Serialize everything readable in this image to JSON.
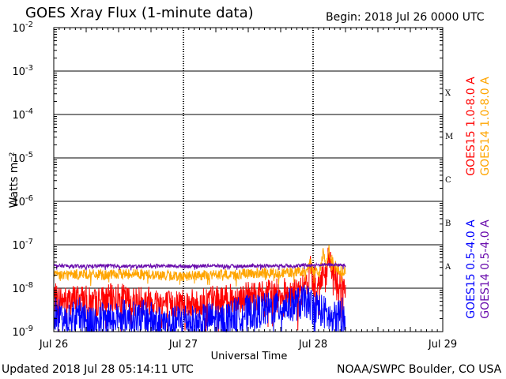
{
  "title": "GOES Xray Flux (1-minute data)",
  "begin": "Begin:  2018 Jul 26 0000 UTC",
  "updated": "Updated 2018 Jul 28 05:14:11 UTC",
  "credit": "NOAA/SWPC Boulder, CO USA",
  "colors": {
    "goes15_long": "#ff0000",
    "goes14_long": "#ffa500",
    "goes15_short": "#0000ff",
    "goes14_short": "#6a0dad"
  },
  "chart_data": {
    "type": "line",
    "title": "GOES Xray Flux (1-minute data)",
    "xlabel": "Universal Time",
    "ylabel": "Watts m⁻²",
    "yscale": "log",
    "ylim": [
      1e-09,
      0.01
    ],
    "xlim": [
      0,
      3
    ],
    "x_ticks": [
      {
        "value": 0,
        "label": "Jul 26"
      },
      {
        "value": 1,
        "label": "Jul 27"
      },
      {
        "value": 2,
        "label": "Jul 28"
      },
      {
        "value": 3,
        "label": "Jul 29"
      }
    ],
    "y_ticks": [
      {
        "value": 1e-09,
        "base": "10",
        "exp": "-9"
      },
      {
        "value": 1e-08,
        "base": "10",
        "exp": "-8"
      },
      {
        "value": 1e-07,
        "base": "10",
        "exp": "-7"
      },
      {
        "value": 1e-06,
        "base": "10",
        "exp": "-6"
      },
      {
        "value": 1e-05,
        "base": "10",
        "exp": "-5"
      },
      {
        "value": 0.0001,
        "base": "10",
        "exp": "-4"
      },
      {
        "value": 0.001,
        "base": "10",
        "exp": "-3"
      },
      {
        "value": 0.01,
        "base": "10",
        "exp": "-2"
      }
    ],
    "flare_classes": [
      {
        "label": "A",
        "value": 3.2e-08
      },
      {
        "label": "B",
        "value": 3.2e-07
      },
      {
        "label": "C",
        "value": 3.2e-06
      },
      {
        "label": "M",
        "value": 3.2e-05
      },
      {
        "label": "X",
        "value": 0.00032
      }
    ],
    "grid": true,
    "series": [
      {
        "name": "GOES15 1.0-8.0 A",
        "color": "#ff0000",
        "points": [
          [
            0,
            6e-09
          ],
          [
            0.1,
            5e-09
          ],
          [
            0.2,
            6e-09
          ],
          [
            0.3,
            4.5e-09
          ],
          [
            0.4,
            5.5e-09
          ],
          [
            0.5,
            6e-09
          ],
          [
            0.6,
            5e-09
          ],
          [
            0.7,
            5.5e-09
          ],
          [
            0.8,
            5e-09
          ],
          [
            0.9,
            4e-09
          ],
          [
            1.0,
            5e-09
          ],
          [
            1.1,
            4e-09
          ],
          [
            1.2,
            5.5e-09
          ],
          [
            1.3,
            5e-09
          ],
          [
            1.4,
            6e-09
          ],
          [
            1.5,
            6.5e-09
          ],
          [
            1.6,
            7e-09
          ],
          [
            1.7,
            7.5e-09
          ],
          [
            1.8,
            8e-09
          ],
          [
            1.9,
            8e-09
          ],
          [
            1.95,
            1.1e-08
          ],
          [
            1.98,
            3e-08
          ],
          [
            2.0,
            1.5e-08
          ],
          [
            2.05,
            1.2e-08
          ],
          [
            2.08,
            2.5e-08
          ],
          [
            2.1,
            1.4e-08
          ],
          [
            2.12,
            6e-08
          ],
          [
            2.15,
            2.2e-08
          ],
          [
            2.2,
            1.5e-08
          ],
          [
            2.25,
            8e-09
          ]
        ]
      },
      {
        "name": "GOES14 1.0-8.0 A",
        "color": "#ffa500",
        "points": [
          [
            0,
            2e-08
          ],
          [
            0.2,
            2.1e-08
          ],
          [
            0.4,
            2e-08
          ],
          [
            0.6,
            2.2e-08
          ],
          [
            0.8,
            2e-08
          ],
          [
            1.0,
            1.9e-08
          ],
          [
            1.2,
            2e-08
          ],
          [
            1.4,
            2.1e-08
          ],
          [
            1.6,
            2.2e-08
          ],
          [
            1.8,
            2.3e-08
          ],
          [
            1.95,
            2.4e-08
          ],
          [
            1.98,
            4e-08
          ],
          [
            2.0,
            2.6e-08
          ],
          [
            2.05,
            2.4e-08
          ],
          [
            2.08,
            7e-08
          ],
          [
            2.1,
            2.8e-08
          ],
          [
            2.12,
            8e-08
          ],
          [
            2.15,
            4e-08
          ],
          [
            2.2,
            2.6e-08
          ],
          [
            2.25,
            2.3e-08
          ]
        ]
      },
      {
        "name": "GOES15 0.5-4.0 A",
        "color": "#0000ff",
        "points": [
          [
            0,
            2.5e-09
          ],
          [
            0.1,
            2e-09
          ],
          [
            0.2,
            2.5e-09
          ],
          [
            0.3,
            1.6e-09
          ],
          [
            0.4,
            2e-09
          ],
          [
            0.5,
            2.5e-09
          ],
          [
            0.6,
            2e-09
          ],
          [
            0.7,
            2.2e-09
          ],
          [
            0.8,
            1.8e-09
          ],
          [
            0.9,
            1.4e-09
          ],
          [
            1.0,
            2e-09
          ],
          [
            1.1,
            1.5e-09
          ],
          [
            1.2,
            2e-09
          ],
          [
            1.3,
            1.8e-09
          ],
          [
            1.4,
            2.5e-09
          ],
          [
            1.5,
            2.8e-09
          ],
          [
            1.6,
            3e-09
          ],
          [
            1.7,
            3.5e-09
          ],
          [
            1.8,
            4e-09
          ],
          [
            1.9,
            4.5e-09
          ],
          [
            1.95,
            5e-09
          ],
          [
            2.0,
            4e-09
          ],
          [
            2.05,
            3.5e-09
          ],
          [
            2.1,
            2.5e-09
          ],
          [
            2.15,
            1.8e-09
          ],
          [
            2.2,
            2.5e-09
          ],
          [
            2.25,
            2.5e-09
          ]
        ]
      },
      {
        "name": "GOES14 0.5-4.0 A",
        "color": "#6a0dad",
        "points": [
          [
            0,
            3.3e-08
          ],
          [
            0.2,
            3.2e-08
          ],
          [
            0.4,
            3.3e-08
          ],
          [
            0.6,
            3.2e-08
          ],
          [
            0.8,
            3.3e-08
          ],
          [
            1.0,
            3.2e-08
          ],
          [
            1.2,
            3.3e-08
          ],
          [
            1.4,
            3.2e-08
          ],
          [
            1.6,
            3.3e-08
          ],
          [
            1.8,
            3.3e-08
          ],
          [
            2.0,
            3.4e-08
          ],
          [
            2.1,
            3.5e-08
          ],
          [
            2.2,
            3.4e-08
          ],
          [
            2.25,
            3.3e-08
          ]
        ]
      }
    ]
  }
}
